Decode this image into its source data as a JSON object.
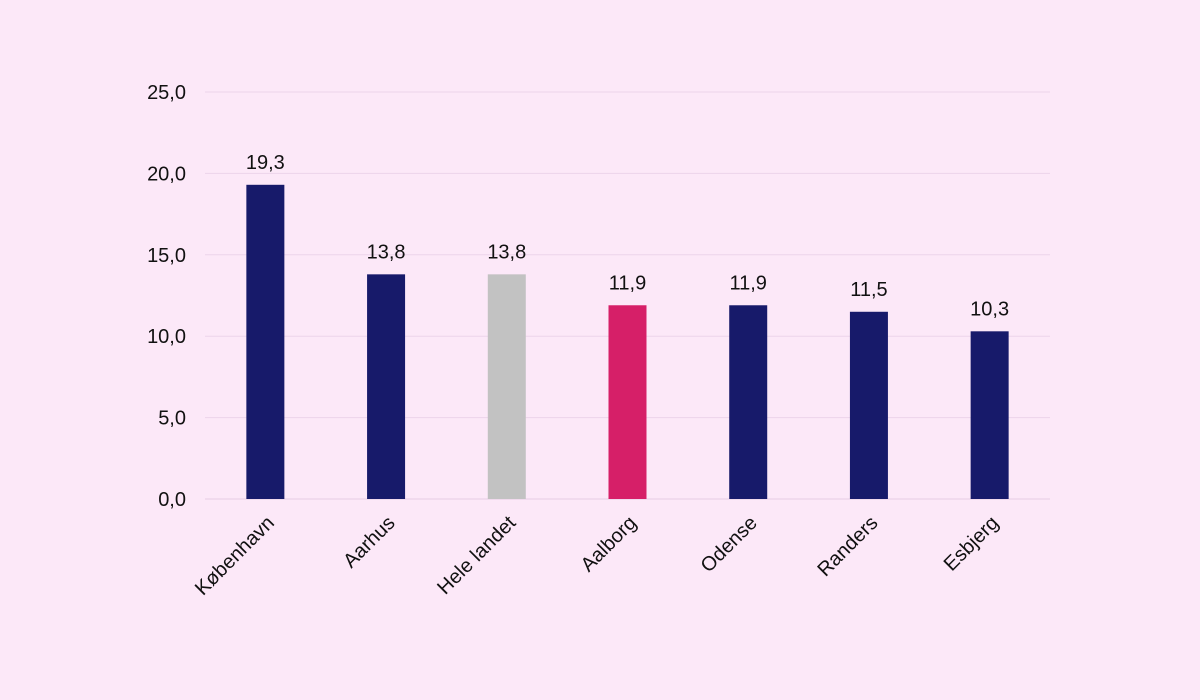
{
  "chart_data": {
    "type": "bar",
    "title": "",
    "xlabel": "",
    "ylabel": "",
    "ylim": [
      0,
      25
    ],
    "yticks": [
      0,
      5,
      10,
      15,
      20,
      25
    ],
    "ytick_labels": [
      "0,0",
      "5,0",
      "10,0",
      "15,0",
      "20,0",
      "25,0"
    ],
    "grid": true,
    "categories": [
      "København",
      "Aarhus",
      "Hele landet",
      "Aalborg",
      "Odense",
      "Randers",
      "Esbjerg"
    ],
    "values": [
      19.3,
      13.8,
      13.8,
      11.9,
      11.9,
      11.5,
      10.3
    ],
    "value_labels": [
      "19,3",
      "13,8",
      "13,8",
      "11,9",
      "11,9",
      "11,5",
      "10,3"
    ],
    "bar_colors": [
      "#171a6a",
      "#171a6a",
      "#c2c2c2",
      "#d61f68",
      "#171a6a",
      "#171a6a",
      "#171a6a"
    ]
  },
  "colors": {
    "background": "#fce8f8",
    "gridline": "#ecd4ea",
    "text": "#111111"
  }
}
